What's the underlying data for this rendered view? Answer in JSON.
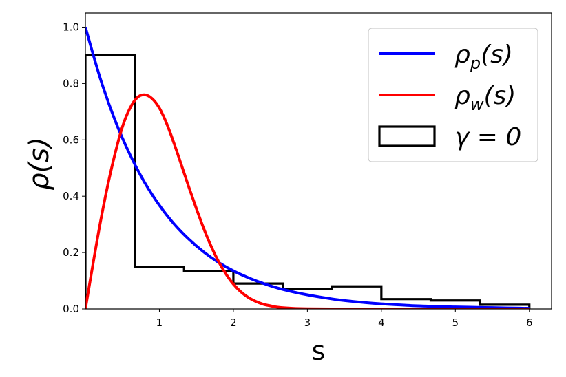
{
  "chart_data": {
    "type": "line",
    "xlabel": "s",
    "ylabel": "ρ(s)",
    "xlim": [
      0,
      6.3
    ],
    "ylim": [
      0,
      1.05
    ],
    "xticks": [
      1,
      2,
      3,
      4,
      5,
      6
    ],
    "yticks": [
      0.0,
      0.2,
      0.4,
      0.6,
      0.8,
      1.0
    ],
    "xtick_labels": [
      "1",
      "2",
      "3",
      "4",
      "5",
      "6"
    ],
    "ytick_labels": [
      "0.0",
      "0.2",
      "0.4",
      "0.6",
      "0.8",
      "1.0"
    ],
    "legend_position": "top-right",
    "grid": false,
    "series": [
      {
        "name": "ρ_p(s)",
        "color": "#0000ff",
        "kind": "line",
        "x": [
          0,
          0.2,
          0.4,
          0.6,
          0.8,
          1.0,
          1.2,
          1.4,
          1.6,
          1.8,
          2.0,
          2.2,
          2.4,
          2.6,
          2.8,
          3.0,
          3.2,
          3.4,
          3.6,
          3.8,
          4.0,
          4.2,
          4.4,
          4.6,
          4.8,
          5.0,
          5.2,
          5.4,
          5.6,
          5.8,
          6.0
        ],
        "y": [
          1.0,
          0.819,
          0.67,
          0.549,
          0.449,
          0.368,
          0.301,
          0.247,
          0.202,
          0.165,
          0.135,
          0.111,
          0.091,
          0.074,
          0.061,
          0.05,
          0.041,
          0.033,
          0.027,
          0.022,
          0.018,
          0.015,
          0.012,
          0.01,
          0.008,
          0.007,
          0.006,
          0.005,
          0.004,
          0.003,
          0.002
        ]
      },
      {
        "name": "ρ_w(s)",
        "color": "#ff0000",
        "kind": "line",
        "x": [
          0,
          0.1,
          0.2,
          0.3,
          0.4,
          0.5,
          0.6,
          0.7,
          0.8,
          0.9,
          1.0,
          1.1,
          1.2,
          1.3,
          1.4,
          1.5,
          1.6,
          1.7,
          1.8,
          1.9,
          2.0,
          2.1,
          2.2,
          2.3,
          2.4,
          2.5,
          2.6,
          2.8,
          3.0,
          3.5,
          4.0,
          5.0,
          6.0
        ],
        "y": [
          0.0,
          0.155,
          0.304,
          0.436,
          0.55,
          0.646,
          0.711,
          0.75,
          0.76,
          0.747,
          0.713,
          0.657,
          0.586,
          0.509,
          0.431,
          0.356,
          0.285,
          0.222,
          0.168,
          0.124,
          0.088,
          0.061,
          0.041,
          0.027,
          0.017,
          0.011,
          0.006,
          0.002,
          0.0006,
          0.0,
          0.0,
          0.0,
          0.0
        ]
      },
      {
        "name": "γ = 0",
        "color": "#000000",
        "kind": "step-histogram",
        "bin_edges": [
          0,
          0.667,
          1.333,
          2.0,
          2.667,
          3.333,
          4.0,
          4.667,
          5.333,
          6.0
        ],
        "values": [
          0.9,
          0.15,
          0.135,
          0.09,
          0.07,
          0.08,
          0.035,
          0.03,
          0.015
        ]
      }
    ]
  },
  "legend": {
    "entries": [
      {
        "base": "ρ",
        "sub": "p",
        "suffix": "(s)",
        "color": "#0000ff",
        "kind": "line"
      },
      {
        "base": "ρ",
        "sub": "w",
        "suffix": "(s)",
        "color": "#ff0000",
        "kind": "line"
      },
      {
        "base": "γ = 0",
        "sub": "",
        "suffix": "",
        "color": "#000000",
        "kind": "box"
      }
    ]
  }
}
